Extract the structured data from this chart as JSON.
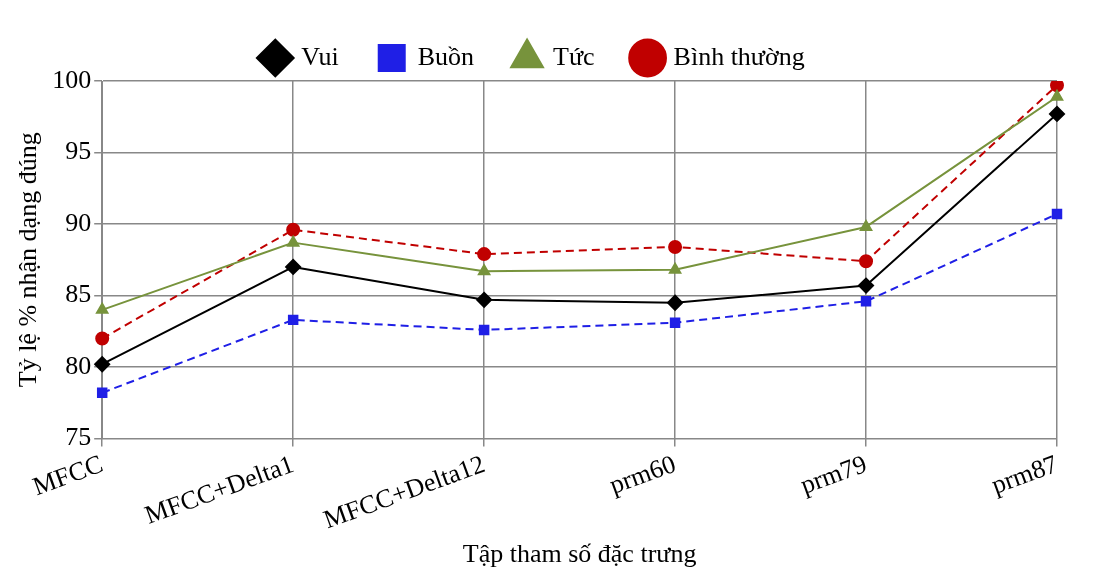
{
  "chart_data": {
    "type": "line",
    "xlabel": "Tập tham số đặc trưng",
    "ylabel": "Tỷ lệ % nhận dạng đúng",
    "categories": [
      "MFCC",
      "MFCC+Delta1",
      "MFCC+Delta12",
      "prm60",
      "prm79",
      "prm87"
    ],
    "series": [
      {
        "name": "Vui",
        "color": "#000000",
        "marker": "diamond",
        "line_style": "solid",
        "values": [
          80.2,
          87.0,
          84.7,
          84.5,
          85.7,
          97.7
        ]
      },
      {
        "name": "Buồn",
        "color": "#1f1fe6",
        "marker": "square",
        "line_style": "dashed",
        "values": [
          78.2,
          83.3,
          82.6,
          83.1,
          84.6,
          90.7
        ]
      },
      {
        "name": "Tức",
        "color": "#77933c",
        "marker": "triangle",
        "line_style": "solid",
        "values": [
          84.0,
          88.7,
          86.7,
          86.8,
          89.8,
          98.9
        ]
      },
      {
        "name": "Bình thường",
        "color": "#c00000",
        "marker": "circle",
        "line_style": "dashed",
        "values": [
          82.0,
          89.6,
          87.9,
          88.4,
          87.4,
          99.7
        ]
      }
    ],
    "ylim": [
      75,
      100
    ],
    "yticks": [
      75,
      80,
      85,
      90,
      95,
      100
    ],
    "grid": true,
    "legend": "top"
  }
}
